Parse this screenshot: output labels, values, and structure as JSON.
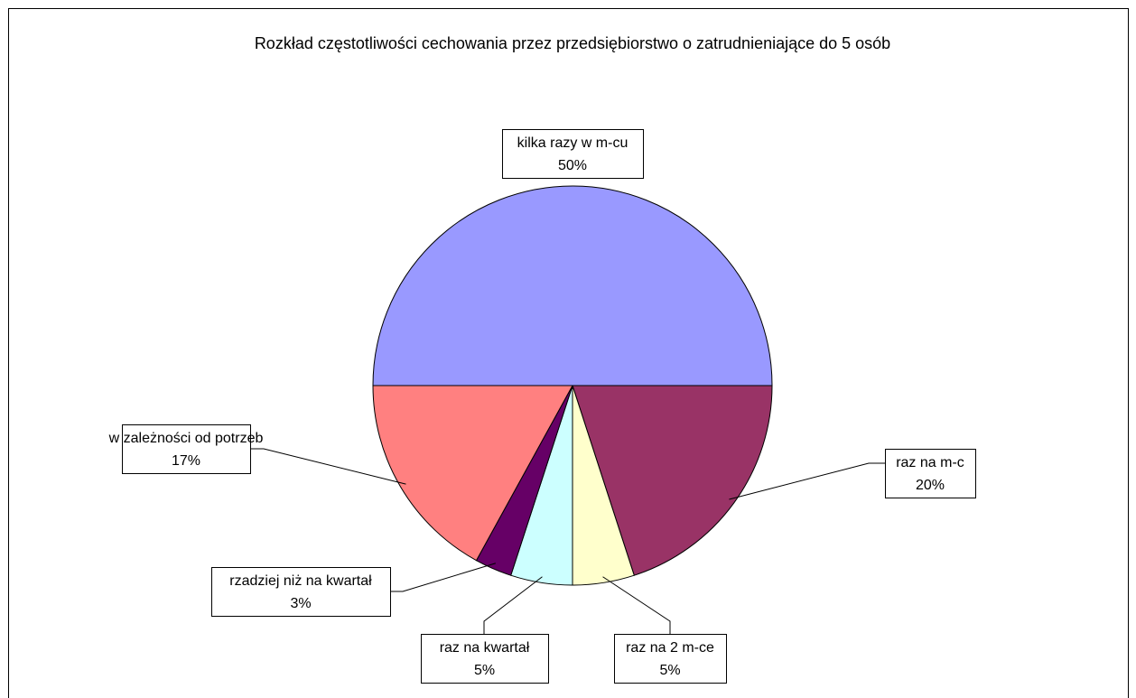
{
  "chart_data": {
    "type": "pie",
    "title": "Rozkład częstotliwości cechowania przez przedsiębiorstwo o zatrudnieniające do 5 osób",
    "categories": [
      "kilka razy w m-cu",
      "raz na m-c",
      "raz na 2 m-ce",
      "raz na kwartał",
      "rzadziej niż na kwartał",
      "w zależności od potrzeb"
    ],
    "values": [
      50,
      20,
      5,
      5,
      3,
      17
    ],
    "value_labels": [
      "50%",
      "20%",
      "5%",
      "5%",
      "3%",
      "17%"
    ],
    "colors": [
      "#9999ff",
      "#993366",
      "#ffffcc",
      "#ccffff",
      "#660066",
      "#ff8080"
    ]
  }
}
